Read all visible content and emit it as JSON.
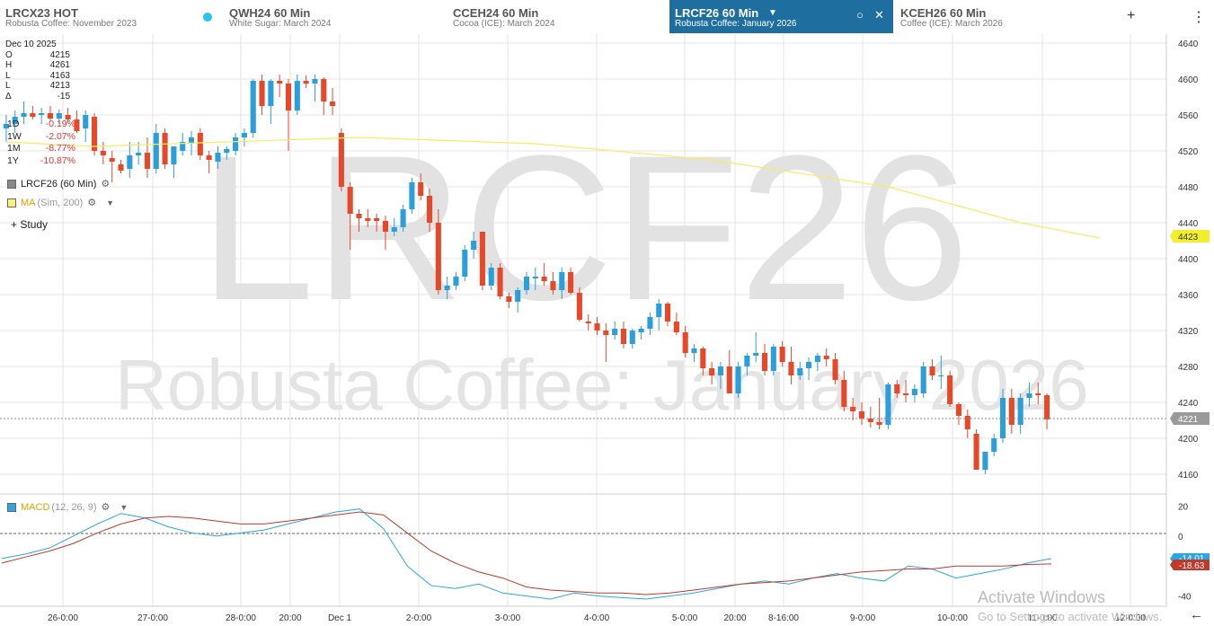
{
  "tabs": [
    {
      "symbol": "LRCX23 HOT",
      "description": "Robusta Coffee: November 2023",
      "active": false
    },
    {
      "symbol": "QWH24 60 Min",
      "description": "White Sugar: March 2024",
      "active": false
    },
    {
      "symbol": "CCEH24 60 Min",
      "description": "Cocoa (ICE): March 2024",
      "active": false
    },
    {
      "symbol": "LRCF26 60 Min",
      "description": "Robusta Coffee: January 2026",
      "active": true
    },
    {
      "symbol": "KCEH26 60 Min",
      "description": "Coffee (ICE): March 2026",
      "active": false
    }
  ],
  "header_icons": {
    "add": "+",
    "menu": "⋮",
    "caret": "▼",
    "circle": "○",
    "close": "✕"
  },
  "watermark": {
    "symbol": "LRCF26",
    "name": "Robusta Coffee: January 2026"
  },
  "readout": {
    "date": "Dec 10 2025",
    "rows": [
      {
        "k": "O",
        "v": "4215"
      },
      {
        "k": "H",
        "v": "4261"
      },
      {
        "k": "L",
        "v": "4163"
      },
      {
        "k": "L",
        "v": "4213"
      },
      {
        "k": "Δ",
        "v": "-15"
      }
    ]
  },
  "performance": [
    {
      "k": "1D",
      "v": "-0.19%"
    },
    {
      "k": "1W",
      "v": "-2.07%"
    },
    {
      "k": "1M",
      "v": "-8.77%"
    },
    {
      "k": "1Y",
      "v": "-10.87%"
    }
  ],
  "legend": {
    "series": "LRCF26 (60 Min)",
    "ma_name": "MA",
    "ma_params": "(Sim, 200)",
    "macd_name": "MACD",
    "macd_params": "(12, 26, 9)",
    "study_label": "Study",
    "plus": "+",
    "gear": "⚙",
    "caret": "▼"
  },
  "colors": {
    "up": "#2b9fd9",
    "down": "#e5492a",
    "ma": "#f3ee63",
    "macd": "#2aa6e0",
    "signal": "#c0392b",
    "grid": "#e6e6e6"
  },
  "price_axis": {
    "ticks": [
      4640,
      4600,
      4560,
      4520,
      4480,
      4440,
      4400,
      4360,
      4320,
      4280,
      4240,
      4200,
      4160
    ],
    "last_price": "4221",
    "ma_value": "4423"
  },
  "macd_axis": {
    "ticks": [
      20,
      0,
      -40
    ],
    "macd_value": "-14.01",
    "signal_value": "-18.63"
  },
  "time_axis": [
    "26-0:00",
    "27-0:00",
    "28-0:00",
    "20:00",
    "Dec 1",
    "2-0:00",
    "3-0:00",
    "4-0:00",
    "5-0:00",
    "20:00",
    "8-16:00",
    "9-0:00",
    "10-0:00",
    "11-0:00",
    "12-0:00"
  ],
  "chart_data": {
    "type": "candlestick",
    "ylim": [
      4140,
      4650
    ],
    "candles": [
      [
        4545,
        4560,
        4530,
        4550
      ],
      [
        4550,
        4565,
        4540,
        4558
      ],
      [
        4558,
        4575,
        4550,
        4562
      ],
      [
        4562,
        4570,
        4555,
        4558
      ],
      [
        4560,
        4568,
        4550,
        4562
      ],
      [
        4562,
        4570,
        4554,
        4556
      ],
      [
        4556,
        4566,
        4550,
        4562
      ],
      [
        4560,
        4568,
        4552,
        4555
      ],
      [
        4555,
        4565,
        4540,
        4542
      ],
      [
        4545,
        4565,
        4530,
        4560
      ],
      [
        4558,
        4562,
        4515,
        4520
      ],
      [
        4520,
        4530,
        4505,
        4515
      ],
      [
        4512,
        4520,
        4485,
        4508
      ],
      [
        4505,
        4510,
        4495,
        4498
      ],
      [
        4500,
        4530,
        4490,
        4515
      ],
      [
        4515,
        4530,
        4505,
        4518
      ],
      [
        4518,
        4535,
        4490,
        4500
      ],
      [
        4500,
        4550,
        4495,
        4540
      ],
      [
        4540,
        4545,
        4500,
        4505
      ],
      [
        4505,
        4520,
        4490,
        4525
      ],
      [
        4520,
        4540,
        4515,
        4530
      ],
      [
        4528,
        4542,
        4515,
        4535
      ],
      [
        4540,
        4545,
        4510,
        4515
      ],
      [
        4515,
        4520,
        4495,
        4510
      ],
      [
        4508,
        4525,
        4500,
        4518
      ],
      [
        4518,
        4525,
        4510,
        4522
      ],
      [
        4520,
        4540,
        4515,
        4535
      ],
      [
        4535,
        4545,
        4525,
        4540
      ],
      [
        4540,
        4600,
        4535,
        4598
      ],
      [
        4598,
        4605,
        4560,
        4570
      ],
      [
        4570,
        4600,
        4550,
        4598
      ],
      [
        4598,
        4605,
        4580,
        4595
      ],
      [
        4595,
        4600,
        4520,
        4565
      ],
      [
        4565,
        4605,
        4560,
        4598
      ],
      [
        4598,
        4604,
        4590,
        4595
      ],
      [
        4595,
        4605,
        4575,
        4600
      ],
      [
        4600,
        4602,
        4560,
        4575
      ],
      [
        4575,
        4590,
        4560,
        4570
      ],
      [
        4540,
        4545,
        4475,
        4480
      ],
      [
        4480,
        4485,
        4410,
        4450
      ],
      [
        4450,
        4455,
        4430,
        4445
      ],
      [
        4445,
        4455,
        4435,
        4442
      ],
      [
        4445,
        4450,
        4430,
        4442
      ],
      [
        4442,
        4448,
        4410,
        4430
      ],
      [
        4430,
        4445,
        4425,
        4435
      ],
      [
        4435,
        4460,
        4430,
        4455
      ],
      [
        4455,
        4490,
        4450,
        4485
      ],
      [
        4485,
        4495,
        4465,
        4470
      ],
      [
        4470,
        4478,
        4430,
        4440
      ],
      [
        4440,
        4455,
        4360,
        4365
      ],
      [
        4365,
        4380,
        4355,
        4370
      ],
      [
        4370,
        4385,
        4365,
        4380
      ],
      [
        4380,
        4415,
        4375,
        4410
      ],
      [
        4410,
        4430,
        4400,
        4420
      ],
      [
        4430,
        4430,
        4365,
        4370
      ],
      [
        4370,
        4395,
        4365,
        4390
      ],
      [
        4390,
        4395,
        4355,
        4358
      ],
      [
        4358,
        4362,
        4345,
        4352
      ],
      [
        4352,
        4368,
        4340,
        4365
      ],
      [
        4365,
        4385,
        4360,
        4380
      ],
      [
        4378,
        4390,
        4365,
        4380
      ],
      [
        4380,
        4395,
        4370,
        4375
      ],
      [
        4375,
        4385,
        4360,
        4365
      ],
      [
        4365,
        4390,
        4355,
        4385
      ],
      [
        4385,
        4390,
        4360,
        4362
      ],
      [
        4362,
        4368,
        4330,
        4332
      ],
      [
        4330,
        4338,
        4320,
        4328
      ],
      [
        4328,
        4335,
        4315,
        4320
      ],
      [
        4320,
        4328,
        4285,
        4315
      ],
      [
        4315,
        4330,
        4310,
        4322
      ],
      [
        4322,
        4330,
        4300,
        4305
      ],
      [
        4305,
        4322,
        4300,
        4320
      ],
      [
        4318,
        4325,
        4310,
        4322
      ],
      [
        4322,
        4340,
        4315,
        4335
      ],
      [
        4335,
        4355,
        4320,
        4350
      ],
      [
        4350,
        4352,
        4325,
        4330
      ],
      [
        4330,
        4340,
        4315,
        4318
      ],
      [
        4318,
        4325,
        4290,
        4295
      ],
      [
        4295,
        4305,
        4285,
        4300
      ],
      [
        4300,
        4302,
        4270,
        4278
      ],
      [
        4278,
        4285,
        4260,
        4270
      ],
      [
        4270,
        4285,
        4255,
        4280
      ],
      [
        4280,
        4298,
        4250,
        4250
      ],
      [
        4250,
        4285,
        4245,
        4280
      ],
      [
        4280,
        4295,
        4270,
        4292
      ],
      [
        4292,
        4318,
        4285,
        4295
      ],
      [
        4295,
        4305,
        4270,
        4275
      ],
      [
        4275,
        4305,
        4270,
        4302
      ],
      [
        4302,
        4308,
        4280,
        4285
      ],
      [
        4285,
        4302,
        4260,
        4270
      ],
      [
        4270,
        4285,
        4265,
        4278
      ],
      [
        4278,
        4290,
        4265,
        4285
      ],
      [
        4285,
        4295,
        4275,
        4292
      ],
      [
        4292,
        4300,
        4280,
        4288
      ],
      [
        4288,
        4295,
        4260,
        4265
      ],
      [
        4265,
        4275,
        4230,
        4235
      ],
      [
        4235,
        4245,
        4220,
        4230
      ],
      [
        4230,
        4240,
        4215,
        4222
      ],
      [
        4222,
        4235,
        4212,
        4218
      ],
      [
        4218,
        4245,
        4210,
        4215
      ],
      [
        4215,
        4262,
        4210,
        4260
      ],
      [
        4260,
        4265,
        4245,
        4250
      ],
      [
        4250,
        4265,
        4240,
        4248
      ],
      [
        4248,
        4260,
        4240,
        4255
      ],
      [
        4250,
        4285,
        4245,
        4280
      ],
      [
        4280,
        4288,
        4265,
        4270
      ],
      [
        4270,
        4292,
        4255,
        4270
      ],
      [
        4270,
        4275,
        4235,
        4238
      ],
      [
        4238,
        4240,
        4215,
        4225
      ],
      [
        4225,
        4232,
        4200,
        4210
      ],
      [
        4205,
        4210,
        4165,
        4165
      ],
      [
        4165,
        4185,
        4160,
        4185
      ],
      [
        4185,
        4205,
        4180,
        4200
      ],
      [
        4200,
        4255,
        4195,
        4245
      ],
      [
        4245,
        4255,
        4205,
        4215
      ],
      [
        4215,
        4250,
        4205,
        4245
      ],
      [
        4245,
        4262,
        4235,
        4250
      ],
      [
        4250,
        4262,
        4238,
        4248
      ],
      [
        4248,
        4250,
        4210,
        4221
      ]
    ],
    "ma": [
      [
        0,
        4530
      ],
      [
        10,
        4525
      ],
      [
        40,
        4535
      ],
      [
        60,
        4528
      ],
      [
        80,
        4510
      ],
      [
        100,
        4480
      ],
      [
        115,
        4440
      ],
      [
        124,
        4423
      ]
    ],
    "macd_ylim": [
      -45,
      25
    ],
    "macd": [
      -15,
      -12,
      -8,
      0,
      8,
      15,
      12,
      6,
      2,
      0,
      2,
      4,
      8,
      12,
      16,
      18,
      5,
      -20,
      -33,
      -35,
      -32,
      -38,
      -40,
      -42,
      -38,
      -40,
      -41,
      -42,
      -40,
      -38,
      -35,
      -32,
      -30,
      -32,
      -28,
      -25,
      -28,
      -30,
      -20,
      -22,
      -28,
      -25,
      -22,
      -18,
      -15
    ],
    "signal": [
      -18,
      -14,
      -10,
      -5,
      2,
      8,
      12,
      13,
      12,
      10,
      8,
      8,
      10,
      12,
      14,
      16,
      14,
      2,
      -10,
      -18,
      -24,
      -28,
      -34,
      -36,
      -37,
      -38,
      -38,
      -39,
      -38,
      -36,
      -34,
      -32,
      -31,
      -30,
      -28,
      -26,
      -24,
      -23,
      -22,
      -22,
      -20,
      -20,
      -20,
      -19,
      -18.6
    ]
  }
}
